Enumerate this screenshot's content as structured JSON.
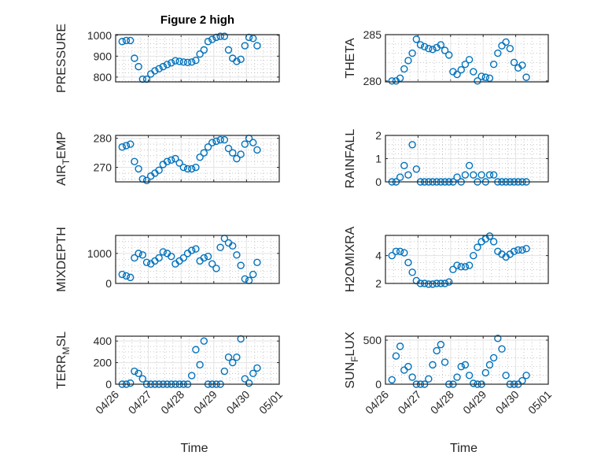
{
  "figure": {
    "title": "Figure 2 high",
    "marker_color": "#0072BD"
  },
  "chart_data": {
    "type": "scatter",
    "title": "Figure 2 high",
    "xlabel": "Time",
    "x_units": "days since 04/26",
    "xlim": [
      0,
      5
    ],
    "xticks": [
      0,
      1,
      2,
      3,
      4,
      5
    ],
    "xtick_labels": [
      "04/26",
      "04/27",
      "04/28",
      "04/29",
      "04/30",
      "05/01"
    ],
    "grid": true,
    "x": [
      0.2,
      0.325,
      0.45,
      0.575,
      0.7,
      0.825,
      0.95,
      1.075,
      1.2,
      1.325,
      1.45,
      1.575,
      1.7,
      1.825,
      1.95,
      2.075,
      2.2,
      2.325,
      2.45,
      2.575,
      2.7,
      2.825,
      2.95,
      3.075,
      3.2,
      3.325,
      3.45,
      3.575,
      3.7,
      3.825,
      3.95,
      4.075,
      4.2,
      4.325
    ],
    "panels": [
      {
        "ylabel": "PRESSURE",
        "ylim": [
          777,
          1003
        ],
        "yticks": [
          800,
          900,
          1000
        ],
        "yminor": 20,
        "values": [
          970,
          975,
          975,
          890,
          850,
          790,
          790,
          815,
          830,
          840,
          850,
          860,
          868,
          878,
          875,
          872,
          870,
          872,
          880,
          910,
          930,
          970,
          980,
          990,
          995,
          995,
          930,
          890,
          875,
          885,
          950,
          990,
          985,
          950
        ]
      },
      {
        "ylabel": "THETA",
        "ylim": [
          279.9,
          285
        ],
        "yticks": [
          280,
          285
        ],
        "yminor": 1,
        "values": [
          280,
          280,
          280.3,
          281.3,
          282.2,
          283,
          284.5,
          283.9,
          283.7,
          283.5,
          283.4,
          283.6,
          283.9,
          283.3,
          282.8,
          281,
          280.7,
          281.2,
          281.8,
          282.3,
          281,
          280,
          280.5,
          280.4,
          280.3,
          281.8,
          283,
          283.8,
          284.2,
          283.5,
          282,
          281.4,
          281.7,
          280.4
        ]
      },
      {
        "ylabel": "AIR_TEMP",
        "ylim": [
          265,
          281
        ],
        "yticks": [
          270,
          280
        ],
        "yminor": 2,
        "values": [
          277,
          277.5,
          278,
          272,
          269.5,
          266,
          265.5,
          267,
          268,
          269,
          271,
          272,
          272.5,
          273,
          271.5,
          270,
          269.5,
          269.5,
          270,
          273.5,
          275,
          277,
          278.5,
          279,
          279.5,
          279.5,
          276.5,
          275,
          273,
          274.5,
          278,
          280,
          278.5,
          276
        ]
      },
      {
        "ylabel": "RAINFALL",
        "ylim": [
          0,
          2
        ],
        "yticks": [
          0,
          1,
          2
        ],
        "yminor": 0.2,
        "values": [
          0,
          0,
          0.2,
          0.7,
          0.3,
          1.6,
          0.55,
          0,
          0,
          0,
          0,
          0,
          0,
          0,
          0,
          0,
          0.2,
          0,
          0.3,
          0.7,
          0.3,
          0,
          0.3,
          0,
          0.3,
          0.3,
          0,
          0,
          0,
          0,
          0,
          0,
          0,
          0
        ]
      },
      {
        "ylabel": "MIXDEPTH",
        "ylim": [
          0,
          1600
        ],
        "yticks": [
          0,
          1000
        ],
        "yminor": 200,
        "values": [
          300,
          250,
          200,
          850,
          1000,
          950,
          700,
          650,
          750,
          850,
          1050,
          1000,
          900,
          650,
          750,
          850,
          1000,
          1100,
          1150,
          750,
          850,
          900,
          650,
          500,
          1200,
          1500,
          1350,
          1250,
          950,
          600,
          150,
          100,
          300,
          700
        ]
      },
      {
        "ylabel": "H2OMIXRA",
        "ylim": [
          2,
          5.45
        ],
        "yticks": [
          2,
          4
        ],
        "yminor": 0.5,
        "values": [
          4,
          4.3,
          4.3,
          4.2,
          3.5,
          2.8,
          2.2,
          2.0,
          2.0,
          1.95,
          1.95,
          2.0,
          2.0,
          2.0,
          2.1,
          3.0,
          3.3,
          3.2,
          3.2,
          3.3,
          4.0,
          4.6,
          5.0,
          5.2,
          5.4,
          5.0,
          4.3,
          4.1,
          3.9,
          4.1,
          4.3,
          4.4,
          4.4,
          4.5
        ]
      },
      {
        "ylabel": "TERR_MSL",
        "ylim": [
          0,
          445
        ],
        "yticks": [
          0,
          200,
          400
        ],
        "yminor": 50,
        "values": [
          0,
          0,
          10,
          120,
          100,
          50,
          0,
          0,
          0,
          0,
          0,
          0,
          0,
          0,
          0,
          0,
          0,
          80,
          320,
          180,
          400,
          0,
          0,
          0,
          0,
          120,
          250,
          200,
          250,
          420,
          50,
          10,
          100,
          150
        ]
      },
      {
        "ylabel": "SUN_FLUX",
        "ylim": [
          0,
          545
        ],
        "yticks": [
          0,
          500
        ],
        "yminor": 100,
        "values": [
          50,
          320,
          430,
          160,
          200,
          80,
          0,
          0,
          0,
          60,
          220,
          380,
          450,
          250,
          0,
          0,
          80,
          200,
          220,
          100,
          10,
          0,
          0,
          130,
          220,
          300,
          520,
          400,
          100,
          0,
          0,
          0,
          40,
          100
        ]
      }
    ]
  }
}
